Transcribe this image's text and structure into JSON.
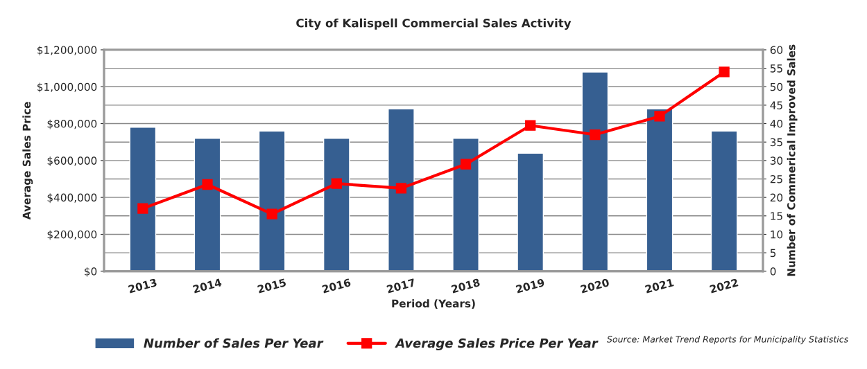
{
  "chart_data": {
    "type": "bar",
    "title": "City of Kalispell Commercial Sales Activity",
    "xlabel": "Period (Years)",
    "ylabel": "Average Sales Price",
    "y2label": "Number of Commerical Improved Sales",
    "categories": [
      "2013",
      "2014",
      "2015",
      "2016",
      "2017",
      "2018",
      "2019",
      "2020",
      "2021",
      "2022"
    ],
    "series": [
      {
        "name": "Number of Sales Per Year",
        "axis": "y2",
        "color": "#365f91",
        "values": [
          39,
          36,
          38,
          36,
          44,
          36,
          32,
          54,
          44,
          38
        ]
      },
      {
        "name": "Average Sales Price Per Year",
        "type": "line",
        "color": "#ff0000",
        "marker": "square",
        "values": [
          340000,
          470000,
          310000,
          475000,
          450000,
          580000,
          790000,
          740000,
          840000,
          1080000
        ]
      }
    ],
    "ylim": [
      0,
      1200000
    ],
    "yticks": [
      {
        "value": 0,
        "label": "$0"
      },
      {
        "value": 200000,
        "label": "$200,000"
      },
      {
        "value": 400000,
        "label": "$400,000"
      },
      {
        "value": 600000,
        "label": "$600,000"
      },
      {
        "value": 800000,
        "label": "$800,000"
      },
      {
        "value": 1000000,
        "label": "$1,000,000"
      },
      {
        "value": 1200000,
        "label": "$1,200,000"
      }
    ],
    "y2lim": [
      0,
      60
    ],
    "y2ticks": [
      0,
      5,
      10,
      15,
      20,
      25,
      30,
      35,
      40,
      45,
      50,
      55,
      60
    ],
    "grid": "y2",
    "legend": "bottom",
    "annotations": [
      "Source: Market Trend Reports for Municipality Statistics"
    ]
  }
}
